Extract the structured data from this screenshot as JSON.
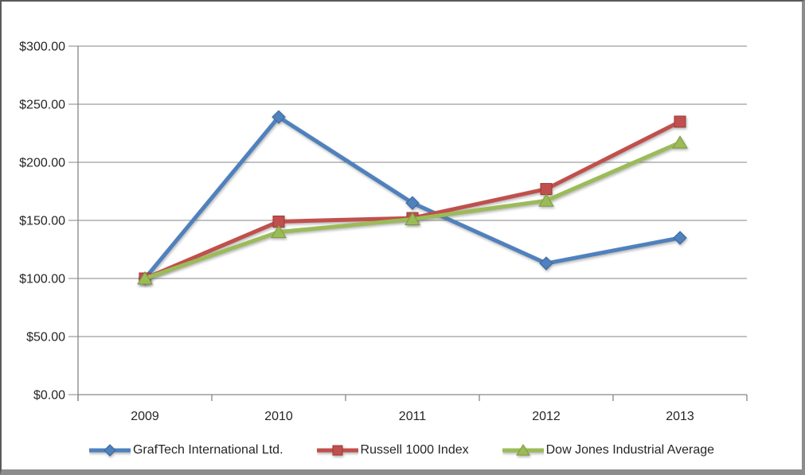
{
  "chart_data": {
    "type": "line",
    "title": "",
    "xlabel": "",
    "ylabel": "",
    "categories": [
      "2009",
      "2010",
      "2011",
      "2012",
      "2013"
    ],
    "series": [
      {
        "name": "GrafTech International Ltd.",
        "color": "#4F81BD",
        "edge_color": "#38679e",
        "marker": "diamond",
        "values": [
          100.0,
          239,
          165,
          113,
          135
        ]
      },
      {
        "name": "Russell 1000 Index",
        "color": "#C0504D",
        "edge_color": "#9c3a38",
        "marker": "square",
        "values": [
          100.0,
          149,
          152,
          177,
          235
        ]
      },
      {
        "name": "Dow Jones Industrial Average",
        "color": "#9BBB59",
        "edge_color": "#7a9a3d",
        "marker": "triangle",
        "values": [
          100.0,
          140,
          151,
          167,
          217
        ]
      }
    ],
    "y_axis": {
      "min": 0,
      "max": 300,
      "step": 50,
      "tick_labels": [
        "$0.00",
        "$50.00",
        "$100.00",
        "$150.00",
        "$200.00",
        "$250.00",
        "$300.00"
      ]
    },
    "x_axis": {
      "tick_labels": [
        "2009",
        "2010",
        "2011",
        "2012",
        "2013"
      ]
    },
    "grid": true,
    "legend_position": "bottom",
    "gridline_color": "#868686",
    "background_color": "#ffffff",
    "text_color": "#262626"
  }
}
